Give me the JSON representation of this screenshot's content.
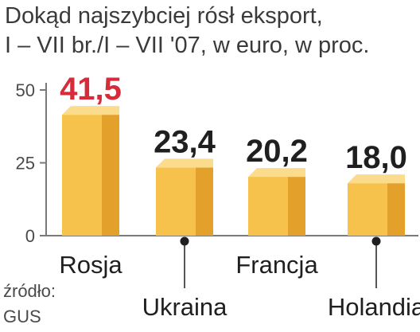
{
  "chart_data": {
    "type": "bar",
    "title": "Dokąd najszybciej rósł eksport,",
    "subtitle": "I – VII br./I – VII '07, w euro, w proc.",
    "categories": [
      "Rosja",
      "Ukraina",
      "Francja",
      "Holandia"
    ],
    "values": [
      41.5,
      23.4,
      20.2,
      18.0
    ],
    "value_labels": [
      "41,5",
      "23,4",
      "20,2",
      "18,0"
    ],
    "highlight_index": 0,
    "ylim": [
      0,
      50
    ],
    "yticks": [
      0,
      25,
      50
    ],
    "ytick_labels": [
      "0",
      "25",
      "50"
    ],
    "grid": false,
    "colors": {
      "bar_front": "#f6c24c",
      "bar_side": "#e3a12c",
      "bar_top": "#fbdc8d",
      "highlight_value": "#d62b3a",
      "axis": "#7a7a7a",
      "marker": "#1f1f1f"
    }
  },
  "source": {
    "label": "źródło:",
    "name": "GUS"
  }
}
